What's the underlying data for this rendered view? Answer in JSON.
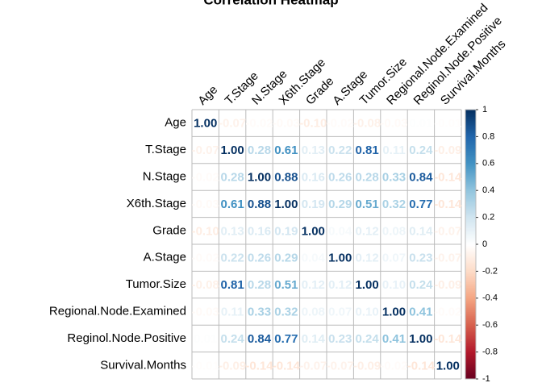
{
  "chart_data": {
    "type": "heatmap",
    "title": "Correlation Heatmap",
    "labels": [
      "Age",
      "T.Stage",
      "N.Stage",
      "X6th.Stage",
      "Grade",
      "A.Stage",
      "Tumor.Size",
      "Regional.Node.Examined",
      "Reginol.Node.Positive",
      "Survival.Months"
    ],
    "values": [
      [
        1.0,
        -0.07,
        -0.02,
        -0.03,
        -0.1,
        -0.02,
        -0.08,
        -0.03,
        0.01,
        -0.01
      ],
      [
        -0.07,
        1.0,
        0.28,
        0.61,
        0.13,
        0.22,
        0.81,
        0.11,
        0.24,
        -0.09
      ],
      [
        -0.02,
        0.28,
        1.0,
        0.88,
        0.16,
        0.26,
        0.28,
        0.33,
        0.84,
        -0.14
      ],
      [
        -0.03,
        0.61,
        0.88,
        1.0,
        0.19,
        0.29,
        0.51,
        0.32,
        0.77,
        -0.14
      ],
      [
        -0.1,
        0.13,
        0.16,
        0.19,
        1.0,
        0.04,
        0.12,
        0.08,
        0.14,
        -0.07
      ],
      [
        -0.02,
        0.22,
        0.26,
        0.29,
        0.04,
        1.0,
        0.12,
        0.07,
        0.23,
        -0.07
      ],
      [
        -0.08,
        0.81,
        0.28,
        0.51,
        0.12,
        0.12,
        1.0,
        0.1,
        0.24,
        -0.09
      ],
      [
        -0.03,
        0.11,
        0.33,
        0.32,
        0.08,
        0.07,
        0.1,
        1.0,
        0.41,
        -0.02
      ],
      [
        0.01,
        0.24,
        0.84,
        0.77,
        0.14,
        0.23,
        0.24,
        0.41,
        1.0,
        -0.14
      ],
      [
        -0.01,
        -0.09,
        -0.14,
        -0.14,
        -0.07,
        -0.07,
        -0.09,
        -0.02,
        -0.14,
        1.0
      ]
    ],
    "value_labels": [
      [
        "1.00",
        "-0.07",
        "-0.02",
        "-0.03",
        "-0.10",
        "-0.02",
        "-0.08",
        "-0.03",
        "0.01",
        "-0.01"
      ],
      [
        "-0.07",
        "1.00",
        "0.28",
        "0.61",
        "0.13",
        "0.22",
        "0.81",
        "0.11",
        "0.24",
        "-0.09"
      ],
      [
        "-0.02",
        "0.28",
        "1.00",
        "0.88",
        "0.16",
        "0.26",
        "0.28",
        "0.33",
        "0.84",
        "-0.14"
      ],
      [
        "-0.03",
        "0.61",
        "0.88",
        "1.00",
        "0.19",
        "0.29",
        "0.51",
        "0.32",
        "0.77",
        "-0.14"
      ],
      [
        "-0.10",
        "0.13",
        "0.16",
        "0.19",
        "1.00",
        "0.04",
        "0.12",
        "0.08",
        "0.14",
        "-0.07"
      ],
      [
        "-0.02",
        "0.22",
        "0.26",
        "0.29",
        "0.04",
        "1.00",
        "0.12",
        "0.07",
        "0.23",
        "-0.07"
      ],
      [
        "-0.08",
        "0.81",
        "0.28",
        "0.51",
        "0.12",
        "0.12",
        "1.00",
        "0.10",
        "0.24",
        "-0.09"
      ],
      [
        "-0.03",
        "0.11",
        "0.33",
        "0.32",
        "0.08",
        "0.07",
        "0.10",
        "1.00",
        "0.41",
        "-0.02"
      ],
      [
        "0.01",
        "0.24",
        "0.84",
        "0.77",
        "0.14",
        "0.23",
        "0.24",
        "0.41",
        "1.00",
        "-0.14"
      ],
      [
        "-0.01",
        "-0.09",
        "-0.14",
        "-0.14",
        "-0.07",
        "-0.07",
        "-0.09",
        "-0.02",
        "-0.14",
        "1.00"
      ]
    ],
    "clim": [
      -1,
      1
    ],
    "cticks": [
      -1,
      -0.8,
      -0.6,
      -0.4,
      -0.2,
      0,
      0.2,
      0.4,
      0.6,
      0.8,
      1
    ],
    "colorscale": [
      "#67001F",
      "#B2182B",
      "#D6604D",
      "#F4A582",
      "#FDDBC7",
      "#FFFFFF",
      "#D1E5F0",
      "#92C5DE",
      "#4393C3",
      "#2166AC",
      "#053061"
    ]
  }
}
